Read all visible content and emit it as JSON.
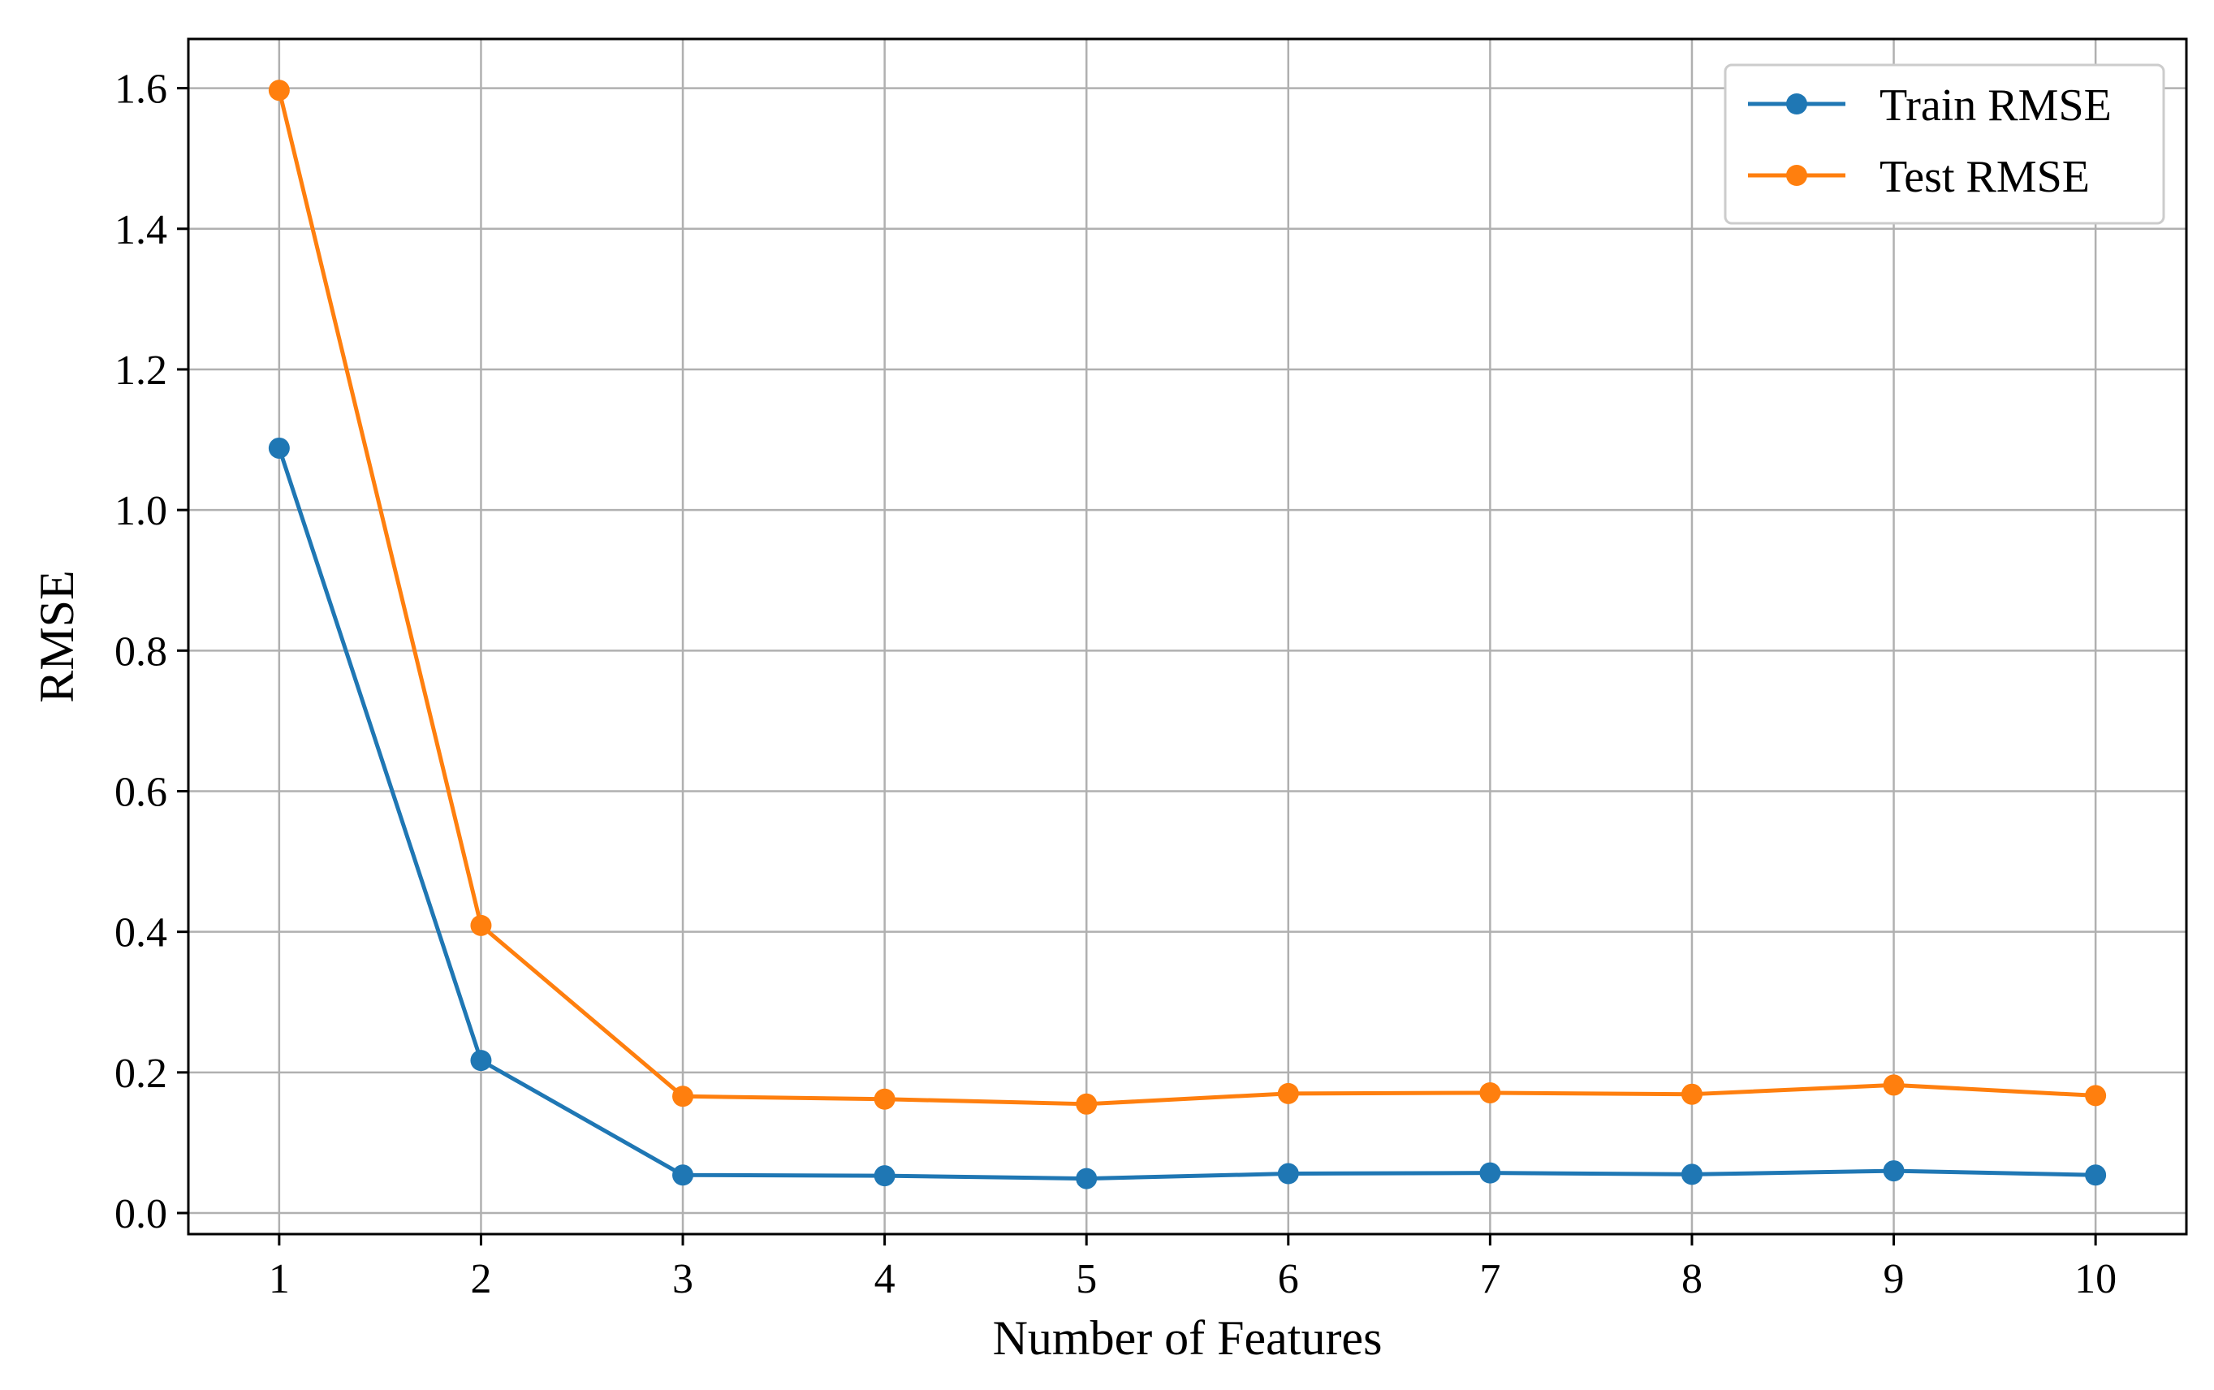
{
  "chart_data": {
    "type": "line",
    "title": "",
    "xlabel": "Number of Features",
    "ylabel": "RMSE",
    "x": [
      1,
      2,
      3,
      4,
      5,
      6,
      7,
      8,
      9,
      10
    ],
    "x_ticks": [
      "1",
      "2",
      "3",
      "4",
      "5",
      "6",
      "7",
      "8",
      "9",
      "10"
    ],
    "y_ticks": [
      "0.0",
      "0.2",
      "0.4",
      "0.6",
      "0.8",
      "1.0",
      "1.2",
      "1.4",
      "1.6"
    ],
    "ylim": [
      -0.03,
      1.67
    ],
    "xlim": [
      0.55,
      10.45
    ],
    "grid": true,
    "legend_position": "top-right",
    "series": [
      {
        "name": "Train RMSE",
        "color": "#1f77b4",
        "marker": "circle",
        "values": [
          1.088,
          0.217,
          0.054,
          0.053,
          0.049,
          0.056,
          0.057,
          0.055,
          0.06,
          0.054
        ]
      },
      {
        "name": "Test RMSE",
        "color": "#ff7f0e",
        "marker": "circle",
        "values": [
          1.597,
          0.409,
          0.166,
          0.162,
          0.155,
          0.17,
          0.171,
          0.169,
          0.182,
          0.167
        ]
      }
    ]
  }
}
